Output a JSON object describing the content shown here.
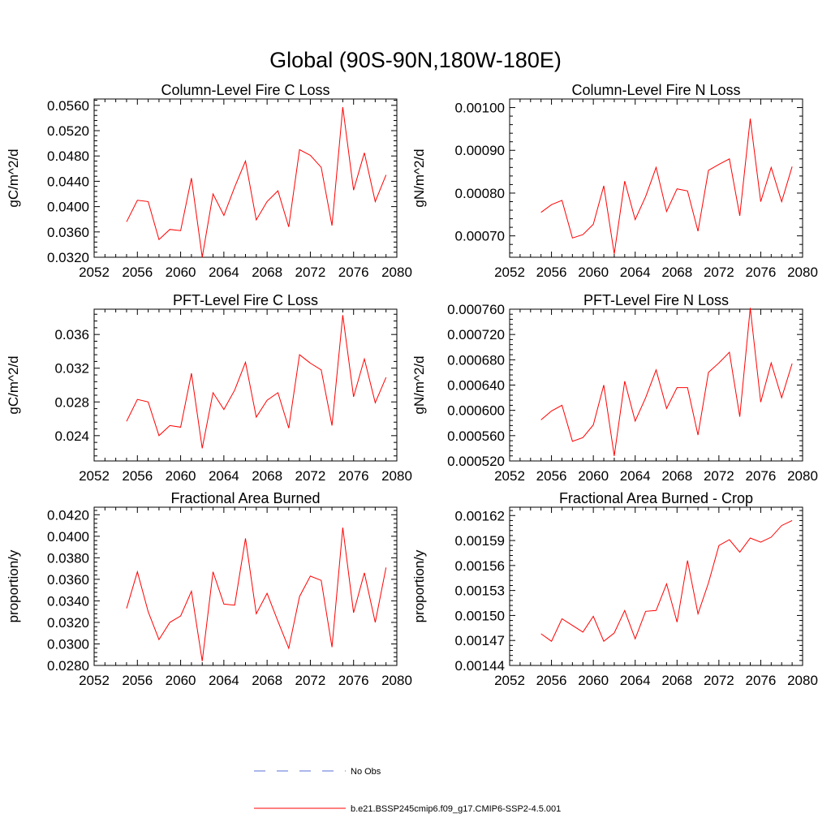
{
  "figure": {
    "title": "Global (90S-90N,180W-180E)"
  },
  "colors": {
    "model_line": "#ff0000",
    "obs_line": "#5a6fd6",
    "axis": "#000000"
  },
  "legend": {
    "placement": "bottom-center",
    "entries": [
      {
        "label": "No Obs",
        "style": "dashed",
        "color": "#5a6fd6"
      },
      {
        "label": "b.e21.BSSP245cmip6.f09_g17.CMIP6-SSP2-4.5.001",
        "style": "solid",
        "color": "#ff0000"
      }
    ]
  },
  "chart_data": [
    {
      "type": "line",
      "title": "Column-Level Fire C Loss",
      "ylabel": "gC/m^2/d",
      "xlabel": "",
      "xlim": [
        2052,
        2080
      ],
      "ylim": [
        0.032,
        0.057
      ],
      "xticks": [
        2052,
        2056,
        2060,
        2064,
        2068,
        2072,
        2076,
        2080
      ],
      "yticks": [
        0.032,
        0.036,
        0.04,
        0.044,
        0.048,
        0.052,
        0.056
      ],
      "ytick_labels": [
        "0.0320",
        "0.0360",
        "0.0400",
        "0.0440",
        "0.0480",
        "0.0520",
        "0.0560"
      ],
      "x": [
        2055,
        2056,
        2057,
        2058,
        2059,
        2060,
        2061,
        2062,
        2063,
        2064,
        2065,
        2066,
        2067,
        2068,
        2069,
        2070,
        2071,
        2072,
        2073,
        2074,
        2075,
        2076,
        2077,
        2078,
        2079
      ],
      "series": [
        {
          "name": "b.e21.BSSP245cmip6.f09_g17.CMIP6-SSP2-4.5.001",
          "values": [
            0.0376,
            0.041,
            0.0408,
            0.0348,
            0.0364,
            0.0362,
            0.0445,
            0.032,
            0.042,
            0.0386,
            0.0431,
            0.0472,
            0.0379,
            0.0408,
            0.0425,
            0.0368,
            0.049,
            0.0481,
            0.0462,
            0.037,
            0.0557,
            0.0426,
            0.0485,
            0.0408,
            0.045
          ]
        }
      ]
    },
    {
      "type": "line",
      "title": "Column-Level Fire N Loss",
      "ylabel": "gN/m^2/d",
      "xlabel": "",
      "xlim": [
        2052,
        2080
      ],
      "ylim": [
        0.00065,
        0.00102
      ],
      "xticks": [
        2052,
        2056,
        2060,
        2064,
        2068,
        2072,
        2076,
        2080
      ],
      "yticks": [
        0.0007,
        0.0008,
        0.0009,
        0.001
      ],
      "ytick_labels": [
        "0.00070",
        "0.00080",
        "0.00090",
        "0.00100"
      ],
      "x": [
        2055,
        2056,
        2057,
        2058,
        2059,
        2060,
        2061,
        2062,
        2063,
        2064,
        2065,
        2066,
        2067,
        2068,
        2069,
        2070,
        2071,
        2072,
        2073,
        2074,
        2075,
        2076,
        2077,
        2078,
        2079
      ],
      "series": [
        {
          "name": "b.e21.BSSP245cmip6.f09_g17.CMIP6-SSP2-4.5.001",
          "values": [
            0.000755,
            0.000773,
            0.000783,
            0.000695,
            0.000703,
            0.000727,
            0.000817,
            0.000658,
            0.000828,
            0.000738,
            0.000792,
            0.00086,
            0.000757,
            0.00081,
            0.000805,
            0.000711,
            0.000853,
            0.000867,
            0.00088,
            0.000747,
            0.000974,
            0.00078,
            0.00086,
            0.00078,
            0.000862
          ]
        }
      ]
    },
    {
      "type": "line",
      "title": "PFT-Level Fire C Loss",
      "ylabel": "gC/m^2/d",
      "xlabel": "",
      "xlim": [
        2052,
        2080
      ],
      "ylim": [
        0.021,
        0.039
      ],
      "xticks": [
        2052,
        2056,
        2060,
        2064,
        2068,
        2072,
        2076,
        2080
      ],
      "yticks": [
        0.024,
        0.028,
        0.032,
        0.036
      ],
      "ytick_labels": [
        "0.024",
        "0.028",
        "0.032",
        "0.036"
      ],
      "x": [
        2055,
        2056,
        2057,
        2058,
        2059,
        2060,
        2061,
        2062,
        2063,
        2064,
        2065,
        2066,
        2067,
        2068,
        2069,
        2070,
        2071,
        2072,
        2073,
        2074,
        2075,
        2076,
        2077,
        2078,
        2079
      ],
      "series": [
        {
          "name": "b.e21.BSSP245cmip6.f09_g17.CMIP6-SSP2-4.5.001",
          "values": [
            0.0257,
            0.0283,
            0.028,
            0.024,
            0.0252,
            0.025,
            0.0314,
            0.0225,
            0.0291,
            0.0271,
            0.0294,
            0.0327,
            0.0262,
            0.0282,
            0.0291,
            0.0249,
            0.0336,
            0.0326,
            0.0318,
            0.0252,
            0.0383,
            0.0286,
            0.0331,
            0.0279,
            0.0309
          ]
        }
      ]
    },
    {
      "type": "line",
      "title": "PFT-Level Fire N Loss",
      "ylabel": "gN/m^2/d",
      "xlabel": "",
      "xlim": [
        2052,
        2080
      ],
      "ylim": [
        0.00052,
        0.00076
      ],
      "xticks": [
        2052,
        2056,
        2060,
        2064,
        2068,
        2072,
        2076,
        2080
      ],
      "yticks": [
        0.00052,
        0.00056,
        0.0006,
        0.00064,
        0.00068,
        0.00072,
        0.00076
      ],
      "ytick_labels": [
        "0.000520",
        "0.000560",
        "0.000600",
        "0.000640",
        "0.000680",
        "0.000720",
        "0.000760"
      ],
      "x": [
        2055,
        2056,
        2057,
        2058,
        2059,
        2060,
        2061,
        2062,
        2063,
        2064,
        2065,
        2066,
        2067,
        2068,
        2069,
        2070,
        2071,
        2072,
        2073,
        2074,
        2075,
        2076,
        2077,
        2078,
        2079
      ],
      "series": [
        {
          "name": "b.e21.BSSP245cmip6.f09_g17.CMIP6-SSP2-4.5.001",
          "values": [
            0.000585,
            0.000599,
            0.000608,
            0.000551,
            0.000557,
            0.000577,
            0.00064,
            0.000528,
            0.000646,
            0.000583,
            0.00062,
            0.000664,
            0.000603,
            0.000636,
            0.000636,
            0.000561,
            0.00066,
            0.000675,
            0.000692,
            0.00059,
            0.000762,
            0.000613,
            0.000675,
            0.00062,
            0.000674
          ]
        }
      ]
    },
    {
      "type": "line",
      "title": "Fractional Area Burned",
      "ylabel": "proportion/y",
      "xlabel": "",
      "xlim": [
        2052,
        2080
      ],
      "ylim": [
        0.028,
        0.0427
      ],
      "xticks": [
        2052,
        2056,
        2060,
        2064,
        2068,
        2072,
        2076,
        2080
      ],
      "yticks": [
        0.028,
        0.03,
        0.032,
        0.034,
        0.036,
        0.038,
        0.04,
        0.042
      ],
      "ytick_labels": [
        "0.0280",
        "0.0300",
        "0.0320",
        "0.0340",
        "0.0360",
        "0.0380",
        "0.0400",
        "0.0420"
      ],
      "x": [
        2055,
        2056,
        2057,
        2058,
        2059,
        2060,
        2061,
        2062,
        2063,
        2064,
        2065,
        2066,
        2067,
        2068,
        2069,
        2070,
        2071,
        2072,
        2073,
        2074,
        2075,
        2076,
        2077,
        2078,
        2079
      ],
      "series": [
        {
          "name": "b.e21.BSSP245cmip6.f09_g17.CMIP6-SSP2-4.5.001",
          "values": [
            0.0333,
            0.0367,
            0.033,
            0.0304,
            0.032,
            0.0326,
            0.0349,
            0.0284,
            0.0367,
            0.0337,
            0.0336,
            0.0398,
            0.0328,
            0.0347,
            0.0321,
            0.0296,
            0.0344,
            0.0363,
            0.0359,
            0.0297,
            0.0408,
            0.0329,
            0.0366,
            0.032,
            0.0371
          ]
        }
      ]
    },
    {
      "type": "line",
      "title": "Fractional Area Burned - Crop",
      "ylabel": "proportion/y",
      "xlabel": "",
      "xlim": [
        2052,
        2080
      ],
      "ylim": [
        0.00144,
        0.00163
      ],
      "xticks": [
        2052,
        2056,
        2060,
        2064,
        2068,
        2072,
        2076,
        2080
      ],
      "yticks": [
        0.00144,
        0.00147,
        0.0015,
        0.00153,
        0.00156,
        0.00159,
        0.00162
      ],
      "ytick_labels": [
        "0.00144",
        "0.00147",
        "0.00150",
        "0.00153",
        "0.00156",
        "0.00159",
        "0.00162"
      ],
      "x": [
        2055,
        2056,
        2057,
        2058,
        2059,
        2060,
        2061,
        2062,
        2063,
        2064,
        2065,
        2066,
        2067,
        2068,
        2069,
        2070,
        2071,
        2072,
        2073,
        2074,
        2075,
        2076,
        2077,
        2078,
        2079
      ],
      "series": [
        {
          "name": "b.e21.BSSP245cmip6.f09_g17.CMIP6-SSP2-4.5.001",
          "values": [
            0.001478,
            0.001469,
            0.001496,
            0.001488,
            0.00148,
            0.001499,
            0.001469,
            0.001479,
            0.001506,
            0.001472,
            0.001505,
            0.001506,
            0.001538,
            0.001492,
            0.001566,
            0.001502,
            0.001539,
            0.001584,
            0.001591,
            0.001576,
            0.001593,
            0.001588,
            0.001594,
            0.001608,
            0.001614
          ]
        }
      ]
    }
  ]
}
